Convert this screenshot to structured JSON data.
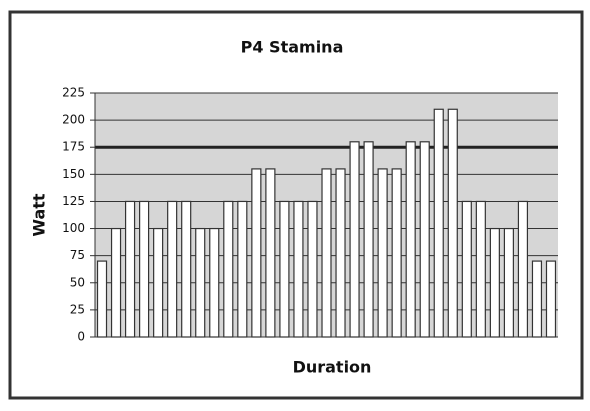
{
  "chart_data": {
    "type": "bar",
    "title": "P4 Stamina",
    "x_label": "Duration",
    "y_label": "Watt",
    "categories": [
      null,
      null,
      null,
      null,
      null,
      null,
      null,
      null,
      null,
      null,
      null,
      null,
      null,
      null,
      null,
      null,
      null,
      null,
      null,
      null,
      null,
      null,
      null,
      null,
      null,
      null,
      null,
      null,
      null,
      null,
      null,
      null,
      null
    ],
    "values": [
      70,
      100,
      125,
      125,
      100,
      125,
      125,
      100,
      100,
      125,
      125,
      155,
      155,
      125,
      125,
      125,
      155,
      155,
      180,
      180,
      155,
      155,
      180,
      180,
      210,
      210,
      125,
      125,
      100,
      100,
      125,
      70,
      70
    ],
    "color": "#ffffff",
    "ylim": [
      0,
      225
    ],
    "yticks": [
      0,
      25,
      50,
      75,
      100,
      125,
      150,
      175,
      200,
      225
    ],
    "grid": true,
    "reference_line": 175
  }
}
